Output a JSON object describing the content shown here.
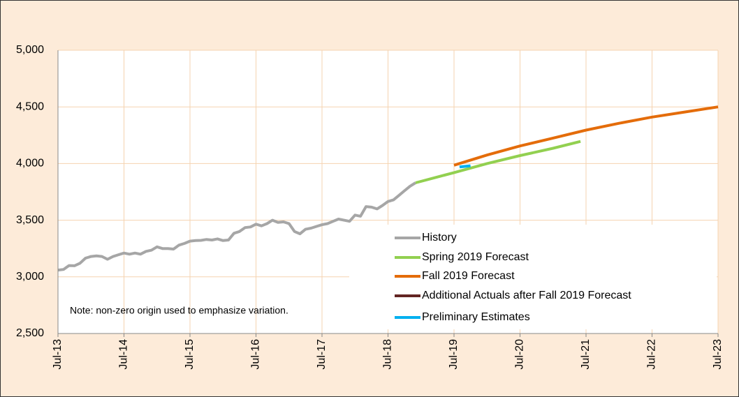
{
  "chart_data": {
    "type": "line",
    "note": "Note: non-zero origin used to emphasize variation.",
    "ylim": [
      2500,
      5000
    ],
    "yticks": [
      {
        "value": 2500,
        "label": "2,500"
      },
      {
        "value": 3000,
        "label": "3,000"
      },
      {
        "value": 3500,
        "label": "3,500"
      },
      {
        "value": 4000,
        "label": "4,000"
      },
      {
        "value": 4500,
        "label": "4,500"
      },
      {
        "value": 5000,
        "label": "5,000"
      }
    ],
    "xlim": [
      "2013-07",
      "2023-07"
    ],
    "xticks": [
      {
        "value": "2013-07",
        "label": "Jul-13"
      },
      {
        "value": "2014-07",
        "label": "Jul-14"
      },
      {
        "value": "2015-07",
        "label": "Jul-15"
      },
      {
        "value": "2016-07",
        "label": "Jul-16"
      },
      {
        "value": "2017-07",
        "label": "Jul-17"
      },
      {
        "value": "2018-07",
        "label": "Jul-18"
      },
      {
        "value": "2019-07",
        "label": "Jul-19"
      },
      {
        "value": "2020-07",
        "label": "Jul-20"
      },
      {
        "value": "2021-07",
        "label": "Jul-21"
      },
      {
        "value": "2022-07",
        "label": "Jul-22"
      },
      {
        "value": "2023-07",
        "label": "Jul-23"
      }
    ],
    "grid": true,
    "series": [
      {
        "name": "History",
        "color": "#a6a6a6",
        "x": [
          "2013-07",
          "2013-08",
          "2013-09",
          "2013-10",
          "2013-11",
          "2013-12",
          "2014-01",
          "2014-02",
          "2014-03",
          "2014-04",
          "2014-05",
          "2014-06",
          "2014-07",
          "2014-08",
          "2014-09",
          "2014-10",
          "2014-11",
          "2014-12",
          "2015-01",
          "2015-02",
          "2015-03",
          "2015-04",
          "2015-05",
          "2015-06",
          "2015-07",
          "2015-08",
          "2015-09",
          "2015-10",
          "2015-11",
          "2015-12",
          "2016-01",
          "2016-02",
          "2016-03",
          "2016-04",
          "2016-05",
          "2016-06",
          "2016-07",
          "2016-08",
          "2016-09",
          "2016-10",
          "2016-11",
          "2016-12",
          "2017-01",
          "2017-02",
          "2017-03",
          "2017-04",
          "2017-05",
          "2017-06",
          "2017-07",
          "2017-08",
          "2017-09",
          "2017-10",
          "2017-11",
          "2017-12",
          "2018-01",
          "2018-02",
          "2018-03",
          "2018-04",
          "2018-05",
          "2018-06",
          "2018-07",
          "2018-08",
          "2018-09",
          "2018-10",
          "2018-11",
          "2018-12"
        ],
        "values": [
          3060,
          3065,
          3100,
          3098,
          3120,
          3165,
          3180,
          3185,
          3180,
          3155,
          3180,
          3195,
          3210,
          3200,
          3210,
          3200,
          3225,
          3235,
          3265,
          3250,
          3250,
          3245,
          3280,
          3295,
          3315,
          3320,
          3322,
          3330,
          3325,
          3335,
          3320,
          3325,
          3385,
          3400,
          3435,
          3440,
          3465,
          3450,
          3470,
          3500,
          3480,
          3485,
          3470,
          3400,
          3380,
          3420,
          3430,
          3445,
          3460,
          3470,
          3490,
          3510,
          3500,
          3490,
          3545,
          3535,
          3620,
          3615,
          3600,
          3630,
          3665,
          3680,
          3720,
          3760,
          3800,
          3830
        ]
      },
      {
        "name": "Spring 2019 Forecast",
        "color": "#92d050",
        "x": [
          "2018-12",
          "2019-07",
          "2020-01",
          "2020-07",
          "2021-01",
          "2021-06"
        ],
        "values": [
          3830,
          3920,
          4000,
          4070,
          4135,
          4195
        ]
      },
      {
        "name": "Fall 2019 Forecast",
        "color": "#e46c0a",
        "x": [
          "2019-07",
          "2020-01",
          "2020-07",
          "2021-01",
          "2021-07",
          "2022-01",
          "2022-07",
          "2023-01",
          "2023-07"
        ],
        "values": [
          3985,
          4075,
          4155,
          4225,
          4295,
          4355,
          4410,
          4455,
          4500
        ]
      },
      {
        "name": "Additional Actuals after Fall 2019 Forecast",
        "color": "#632523",
        "x": [],
        "values": []
      },
      {
        "name": "Preliminary Estimates",
        "color": "#00b0f0",
        "x": [
          "2019-08",
          "2019-10"
        ],
        "values": [
          3970,
          3980
        ]
      }
    ]
  }
}
